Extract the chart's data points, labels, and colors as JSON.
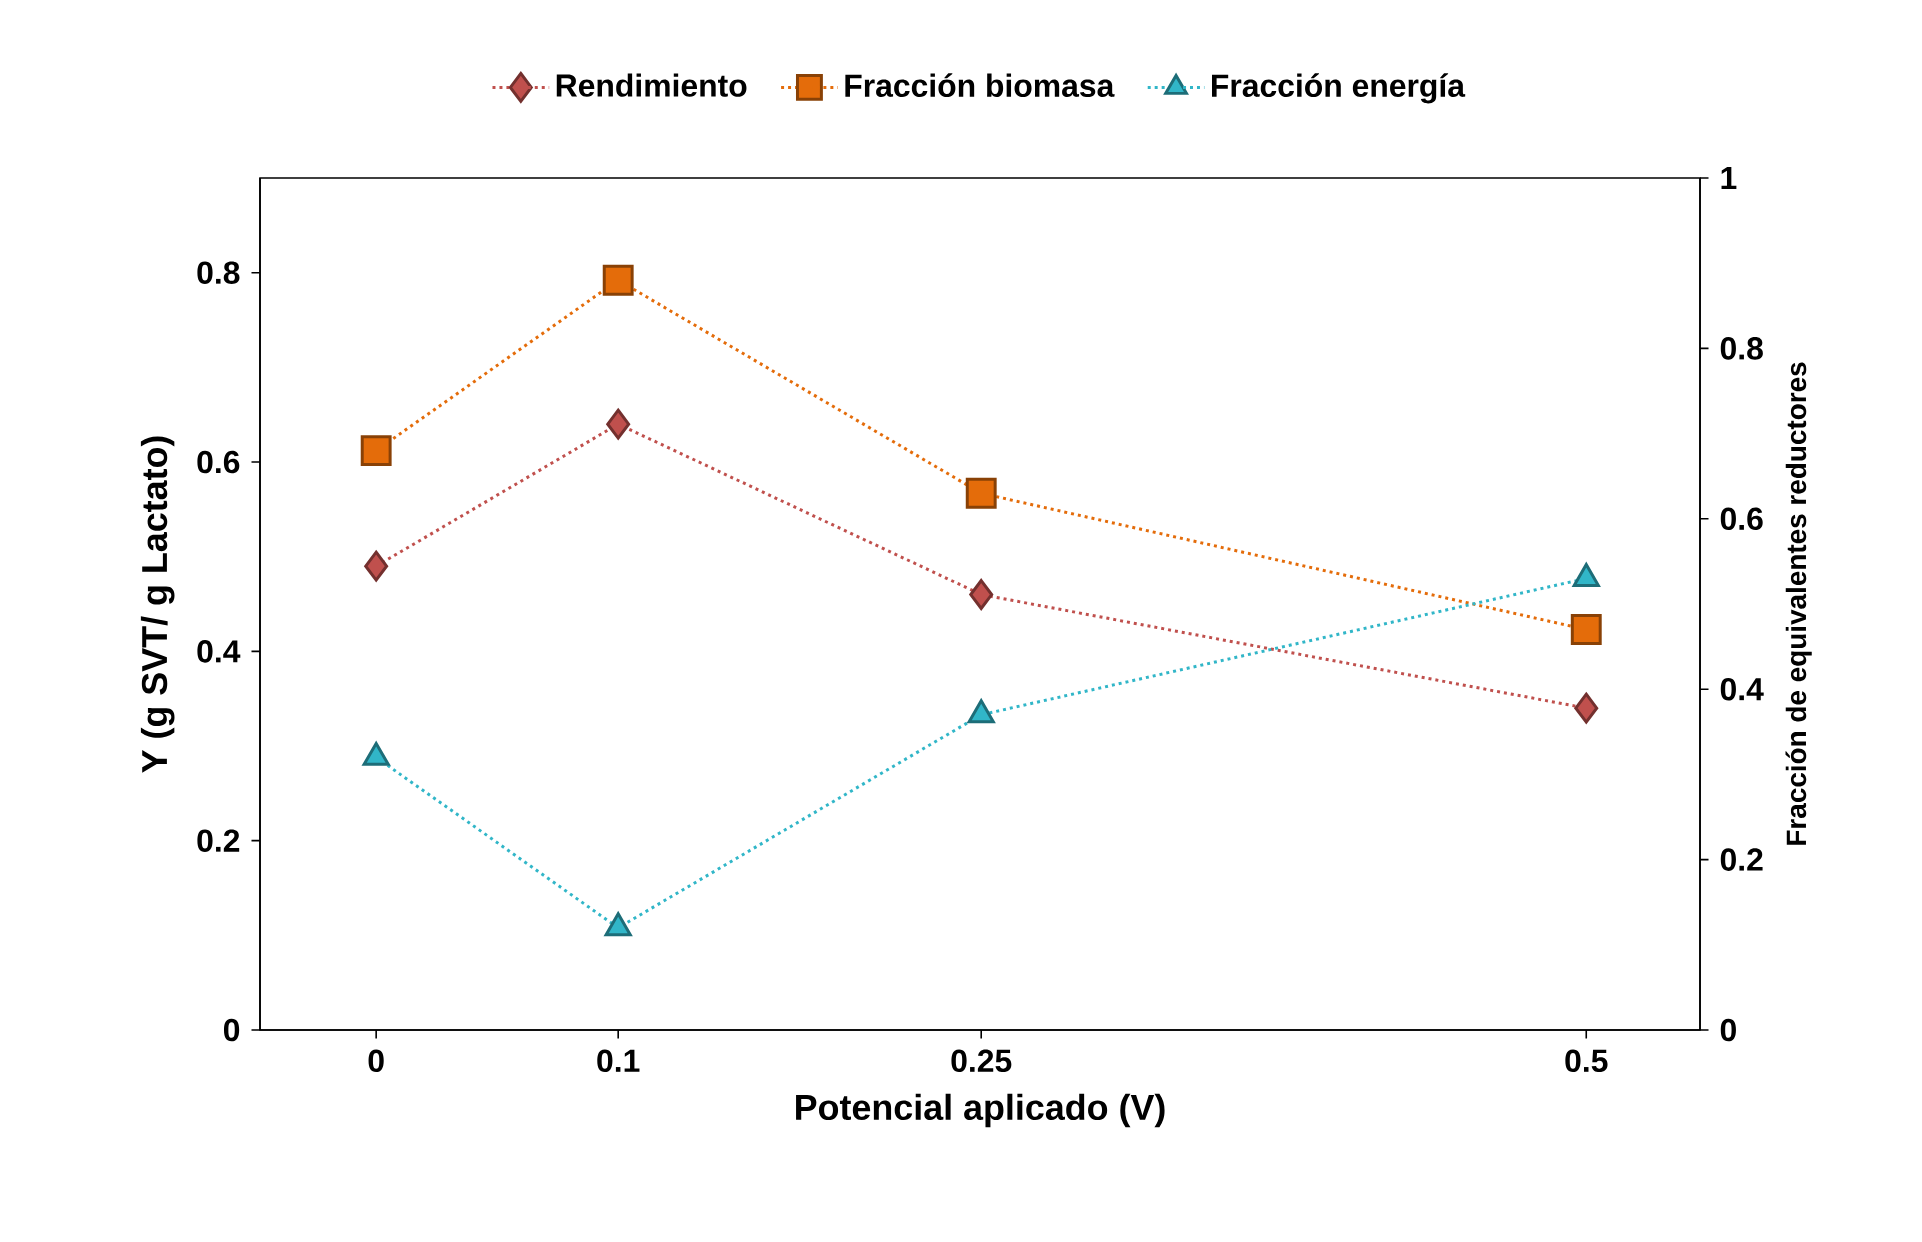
{
  "chart_data": {
    "type": "line",
    "xlabel": "Potencial aplicado (V)",
    "ylabel": "Y (g SVT/ g Lactato)",
    "y2label": "Fracción de equivalentes reductores",
    "x": [
      0,
      0.1,
      0.25,
      0.5
    ],
    "xlim": [
      -0.048,
      0.547
    ],
    "xticks": [
      0,
      0.1,
      0.25,
      0.5
    ],
    "ylim": [
      0,
      0.9
    ],
    "yticks": [
      0,
      0.2,
      0.4,
      0.6,
      0.8
    ],
    "y2lim": [
      0,
      1
    ],
    "y2ticks": [
      0,
      0.2,
      0.4,
      0.6,
      0.8,
      1
    ],
    "legend": "top",
    "grid": false,
    "line_style": "dotted",
    "series": [
      {
        "name": "Rendimiento",
        "color": "#c0504d",
        "marker": "diamond",
        "values": [
          0.49,
          0.64,
          0.46,
          0.34
        ]
      },
      {
        "name": "Fracción biomasa",
        "color": "#e46c0a",
        "marker": "square",
        "axis": "y2",
        "values": [
          0.68,
          0.88,
          0.63,
          0.47
        ]
      },
      {
        "name": "Fracción energía",
        "color": "#31b6c8",
        "marker": "triangle",
        "axis": "y2",
        "values": [
          0.32,
          0.12,
          0.37,
          0.53
        ]
      }
    ]
  }
}
